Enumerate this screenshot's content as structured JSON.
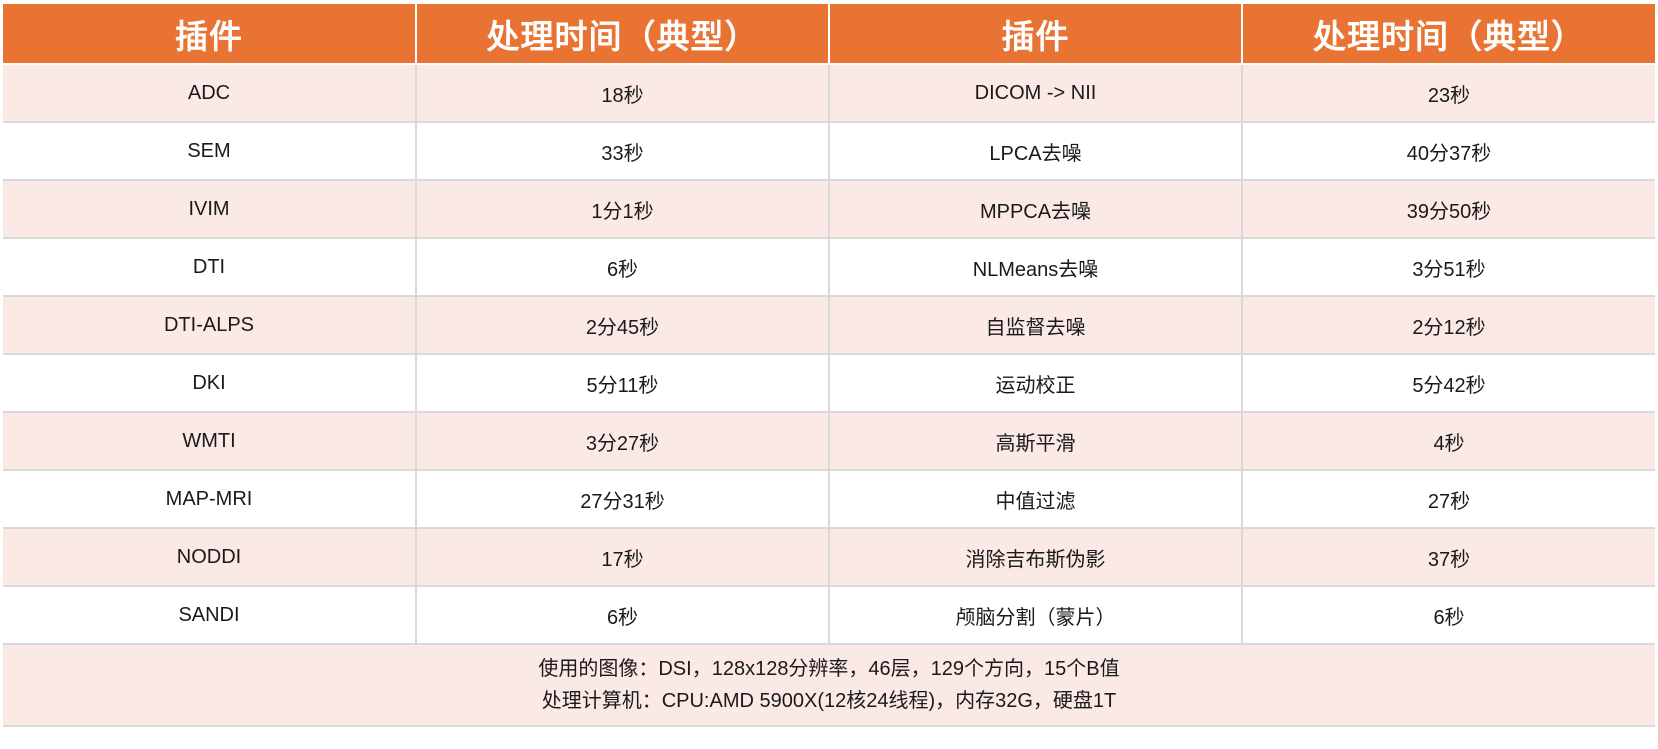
{
  "table": {
    "headers": [
      "插件",
      "处理时间（典型）",
      "插件",
      "处理时间（典型）"
    ],
    "rows": [
      [
        "ADC",
        "18秒",
        "DICOM -> NII",
        "23秒"
      ],
      [
        "SEM",
        "33秒",
        "LPCA去噪",
        "40分37秒"
      ],
      [
        "IVIM",
        "1分1秒",
        "MPPCA去噪",
        "39分50秒"
      ],
      [
        "DTI",
        "6秒",
        "NLMeans去噪",
        "3分51秒"
      ],
      [
        "DTI-ALPS",
        "2分45秒",
        "自监督去噪",
        "2分12秒"
      ],
      [
        "DKI",
        "5分11秒",
        "运动校正",
        "5分42秒"
      ],
      [
        "WMTI",
        "3分27秒",
        "高斯平滑",
        "4秒"
      ],
      [
        "MAP-MRI",
        "27分31秒",
        "中值过滤",
        "27秒"
      ],
      [
        "NODDI",
        "17秒",
        "消除吉布斯伪影",
        "37秒"
      ],
      [
        "SANDI",
        "6秒",
        "颅脑分割（蒙片）",
        "6秒"
      ]
    ],
    "footer": [
      "使用的图像：DSI，128x128分辨率，46层，129个方向，15个B值",
      "处理计算机：CPU:AMD 5900X(12核24线程)，内存32G，硬盘1T"
    ]
  },
  "colors": {
    "header_bg": "#e87333",
    "header_text": "#ffffff",
    "row_alt_bg": "#fbe9e6",
    "row_bg": "#ffffff",
    "grid_line": "#d9d9d9"
  }
}
